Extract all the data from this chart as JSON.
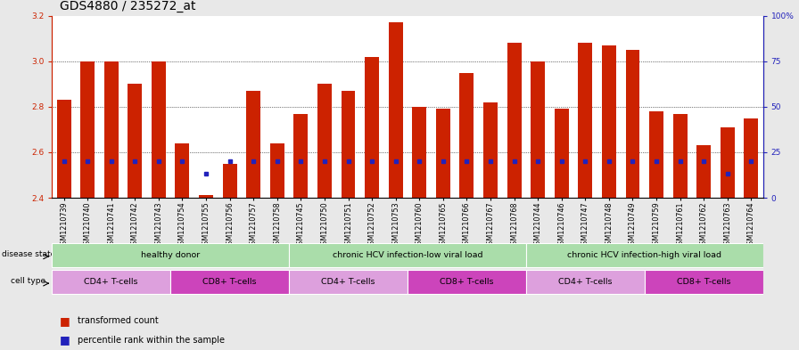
{
  "title": "GDS4880 / 235272_at",
  "samples": [
    "GSM1210739",
    "GSM1210740",
    "GSM1210741",
    "GSM1210742",
    "GSM1210743",
    "GSM1210754",
    "GSM1210755",
    "GSM1210756",
    "GSM1210757",
    "GSM1210758",
    "GSM1210745",
    "GSM1210750",
    "GSM1210751",
    "GSM1210752",
    "GSM1210753",
    "GSM1210760",
    "GSM1210765",
    "GSM1210766",
    "GSM1210767",
    "GSM1210768",
    "GSM1210744",
    "GSM1210746",
    "GSM1210747",
    "GSM1210748",
    "GSM1210749",
    "GSM1210759",
    "GSM1210761",
    "GSM1210762",
    "GSM1210763",
    "GSM1210764"
  ],
  "red_values": [
    2.83,
    3.0,
    3.0,
    2.9,
    3.0,
    2.64,
    2.41,
    2.55,
    2.87,
    2.64,
    2.77,
    2.9,
    2.87,
    3.02,
    3.17,
    2.8,
    2.79,
    2.95,
    2.82,
    3.08,
    3.0,
    2.79,
    3.08,
    3.07,
    3.05,
    2.78,
    2.77,
    2.63,
    2.71,
    2.75
  ],
  "blue_values": [
    20,
    20,
    20,
    20,
    20,
    20,
    13,
    20,
    20,
    20,
    20,
    20,
    20,
    20,
    20,
    20,
    20,
    20,
    20,
    20,
    20,
    20,
    20,
    20,
    20,
    20,
    20,
    20,
    13,
    20
  ],
  "ylim_left": [
    2.4,
    3.2
  ],
  "ylim_right": [
    0,
    100
  ],
  "y_ticks_left": [
    2.4,
    2.6,
    2.8,
    3.0,
    3.2
  ],
  "y_ticks_right": [
    0,
    25,
    50,
    75,
    100
  ],
  "bar_color": "#CC2200",
  "blue_color": "#2222BB",
  "plot_bg": "#FFFFFF",
  "fig_bg": "#E8E8E8",
  "left_axis_color": "#CC2200",
  "right_axis_color": "#2222BB",
  "title_fontsize": 10,
  "tick_fontsize": 6.5,
  "annot_fontsize": 7,
  "ds_groups": [
    {
      "label": "healthy donor",
      "start": 0,
      "end": 9,
      "color": "#AADDAA"
    },
    {
      "label": "chronic HCV infection-low viral load",
      "start": 10,
      "end": 19,
      "color": "#AADDAA"
    },
    {
      "label": "chronic HCV infection-high viral load",
      "start": 20,
      "end": 29,
      "color": "#AADDAA"
    }
  ],
  "ct_groups": [
    {
      "label": "CD4+ T-cells",
      "start": 0,
      "end": 4,
      "color": "#DDA0DD"
    },
    {
      "label": "CD8+ T-cells",
      "start": 5,
      "end": 9,
      "color": "#CC44BB"
    },
    {
      "label": "CD4+ T-cells",
      "start": 10,
      "end": 14,
      "color": "#DDA0DD"
    },
    {
      "label": "CD8+ T-cells",
      "start": 15,
      "end": 19,
      "color": "#CC44BB"
    },
    {
      "label": "CD4+ T-cells",
      "start": 20,
      "end": 24,
      "color": "#DDA0DD"
    },
    {
      "label": "CD8+ T-cells",
      "start": 25,
      "end": 29,
      "color": "#CC44BB"
    }
  ],
  "legend_items": [
    {
      "color": "#CC2200",
      "label": "transformed count"
    },
    {
      "color": "#2222BB",
      "label": "percentile rank within the sample"
    }
  ]
}
